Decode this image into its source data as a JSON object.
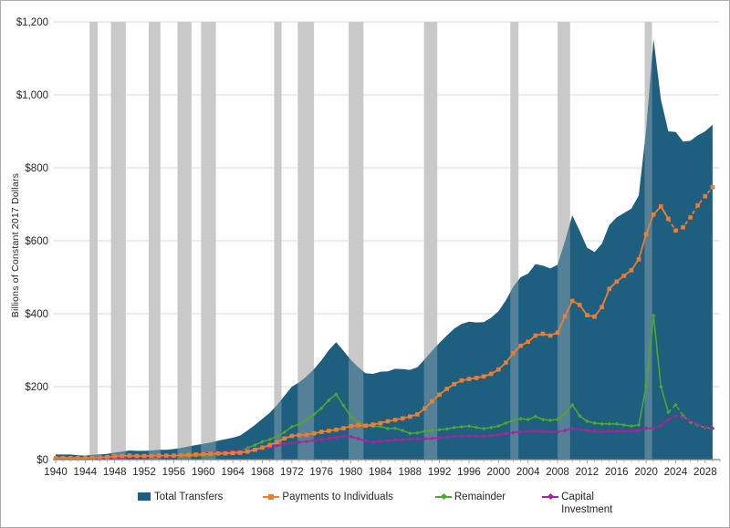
{
  "figure": {
    "y_axis_title": "Billions of Constant 2017 Dollars",
    "legend": {
      "total": "Total Transfers",
      "payments": "Payments to Individuals",
      "remainder": "Remainder",
      "capital": "Capital Investment"
    },
    "colors": {
      "total_area": "#1E5F80",
      "payments_line": "#ED7D31",
      "remainder_line": "#4EA72E",
      "capital_line": "#A8249B",
      "recession_band": "#C9C9C9",
      "gridline": "#D9D9D9",
      "axis": "#808080",
      "tick_text": "#262626"
    }
  },
  "chart_data": {
    "type": "area",
    "title": "",
    "xlabel": "",
    "ylabel": "Billions of Constant 2017 Dollars",
    "xlim": [
      1940,
      2030
    ],
    "ylim": [
      0,
      1200
    ],
    "grid": "horizontal",
    "legend_position": "bottom",
    "y_ticks": [
      0,
      200,
      400,
      600,
      800,
      1000,
      1200
    ],
    "y_tick_labels": [
      "$0",
      "$200",
      "$400",
      "$600",
      "$800",
      "$1,000",
      "$1,200"
    ],
    "x_ticks": [
      1940,
      1944,
      1948,
      1952,
      1956,
      1960,
      1964,
      1968,
      1972,
      1976,
      1980,
      1984,
      1988,
      1992,
      1996,
      2000,
      2004,
      2008,
      2012,
      2016,
      2020,
      2024,
      2028
    ],
    "x_tick_labels": [
      "1940",
      "1944",
      "1948",
      "1952",
      "1956",
      "1960",
      "1964",
      "1968",
      "1972",
      "1976",
      "1980",
      "1984",
      "1988",
      "1992",
      "1996",
      "2000",
      "2004",
      "2008",
      "2012",
      "2016",
      "2020",
      "2024",
      "2028"
    ],
    "years": [
      1940,
      1941,
      1942,
      1943,
      1944,
      1945,
      1946,
      1947,
      1948,
      1949,
      1950,
      1951,
      1952,
      1953,
      1954,
      1955,
      1956,
      1957,
      1958,
      1959,
      1960,
      1961,
      1962,
      1963,
      1964,
      1965,
      1966,
      1967,
      1968,
      1969,
      1970,
      1971,
      1972,
      1973,
      1974,
      1975,
      1976,
      1977,
      1978,
      1979,
      1980,
      1981,
      1982,
      1983,
      1984,
      1985,
      1986,
      1987,
      1988,
      1989,
      1990,
      1991,
      1992,
      1993,
      1994,
      1995,
      1996,
      1997,
      1998,
      1999,
      2000,
      2001,
      2002,
      2003,
      2004,
      2005,
      2006,
      2007,
      2008,
      2009,
      2010,
      2011,
      2012,
      2013,
      2014,
      2015,
      2016,
      2017,
      2018,
      2019,
      2020,
      2021,
      2022,
      2023,
      2024,
      2025,
      2026,
      2027,
      2028,
      2029
    ],
    "projection_dashed_from": 2023,
    "series": [
      {
        "name": "Total Transfers",
        "type": "area",
        "color": "#1E5F80",
        "values": [
          14,
          14,
          14,
          12,
          11,
          13,
          14,
          16,
          19,
          22,
          25,
          24,
          24,
          25,
          27,
          27,
          29,
          32,
          36,
          40,
          43,
          47,
          52,
          56,
          60,
          66,
          80,
          95,
          112,
          128,
          150,
          175,
          200,
          212,
          228,
          248,
          272,
          300,
          322,
          298,
          273,
          253,
          237,
          235,
          241,
          242,
          249,
          248,
          246,
          253,
          275,
          298,
          320,
          340,
          359,
          372,
          378,
          376,
          377,
          389,
          407,
          437,
          474,
          500,
          510,
          536,
          532,
          524,
          534,
          598,
          670,
          627,
          581,
          569,
          592,
          643,
          664,
          676,
          688,
          724,
          904,
          1153,
          987,
          900,
          898,
          872,
          874,
          889,
          900,
          918
        ]
      },
      {
        "name": "Payments to Individuals",
        "type": "line",
        "marker": "square",
        "color": "#ED7D31",
        "values": [
          4,
          4,
          4,
          4,
          4,
          5,
          6,
          7,
          9,
          10,
          11,
          10,
          10,
          10,
          11,
          11,
          11,
          12,
          13,
          14,
          15,
          16,
          17,
          17,
          18,
          19,
          22,
          27,
          33,
          40,
          48,
          58,
          65,
          67,
          68,
          72,
          76,
          79,
          82,
          86,
          92,
          94,
          93,
          96,
          100,
          105,
          109,
          113,
          118,
          124,
          140,
          160,
          178,
          194,
          207,
          217,
          221,
          224,
          228,
          235,
          247,
          266,
          292,
          312,
          323,
          340,
          345,
          340,
          348,
          393,
          435,
          424,
          396,
          392,
          418,
          468,
          488,
          504,
          519,
          549,
          618,
          672,
          694,
          660,
          628,
          637,
          664,
          697,
          722,
          747
        ]
      },
      {
        "name": "Remainder",
        "type": "line",
        "marker": "diamond",
        "color": "#4EA72E",
        "values": [
          6,
          6,
          6,
          5,
          5,
          6,
          6,
          6,
          6,
          7,
          8,
          8,
          8,
          8,
          8,
          8,
          9,
          9,
          10,
          10,
          11,
          13,
          15,
          17,
          19,
          22,
          32,
          40,
          49,
          55,
          64,
          75,
          90,
          97,
          110,
          124,
          141,
          163,
          179,
          148,
          118,
          102,
          93,
          91,
          91,
          85,
          86,
          80,
          72,
          73,
          78,
          80,
          82,
          84,
          88,
          90,
          92,
          88,
          85,
          88,
          92,
          100,
          108,
          112,
          110,
          118,
          110,
          108,
          110,
          125,
          150,
          120,
          105,
          100,
          98,
          98,
          98,
          95,
          92,
          95,
          200,
          395,
          200,
          130,
          150,
          120,
          103,
          95,
          88,
          85
        ]
      },
      {
        "name": "Capital Investment",
        "type": "line",
        "marker": "diamond",
        "color": "#A8249B",
        "values": [
          4,
          4,
          4,
          3,
          2,
          2,
          2,
          3,
          4,
          5,
          6,
          6,
          6,
          7,
          8,
          8,
          9,
          11,
          13,
          16,
          17,
          18,
          20,
          22,
          23,
          25,
          26,
          28,
          30,
          33,
          38,
          42,
          45,
          48,
          50,
          52,
          55,
          58,
          61,
          64,
          63,
          57,
          51,
          48,
          50,
          52,
          54,
          55,
          56,
          56,
          57,
          58,
          60,
          62,
          64,
          65,
          65,
          64,
          64,
          66,
          68,
          71,
          74,
          76,
          77,
          78,
          77,
          76,
          76,
          80,
          85,
          83,
          80,
          77,
          76,
          77,
          78,
          77,
          77,
          80,
          86,
          86,
          93,
          110,
          120,
          115,
          107,
          97,
          90,
          86
        ]
      }
    ],
    "recession_bands": [
      [
        1944.6,
        1945.7
      ],
      [
        1947.5,
        1949.5
      ],
      [
        1952.6,
        1954.2
      ],
      [
        1956.5,
        1958.4
      ],
      [
        1959.7,
        1961.7
      ],
      [
        1969.6,
        1970.6
      ],
      [
        1972.8,
        1975.0
      ],
      [
        1979.7,
        1981.7
      ],
      [
        1989.9,
        1991.7
      ],
      [
        2001.6,
        2002.7
      ],
      [
        2008.0,
        2009.7
      ],
      [
        2019.8,
        2020.8
      ]
    ],
    "band_color": "#C9C9C9"
  }
}
